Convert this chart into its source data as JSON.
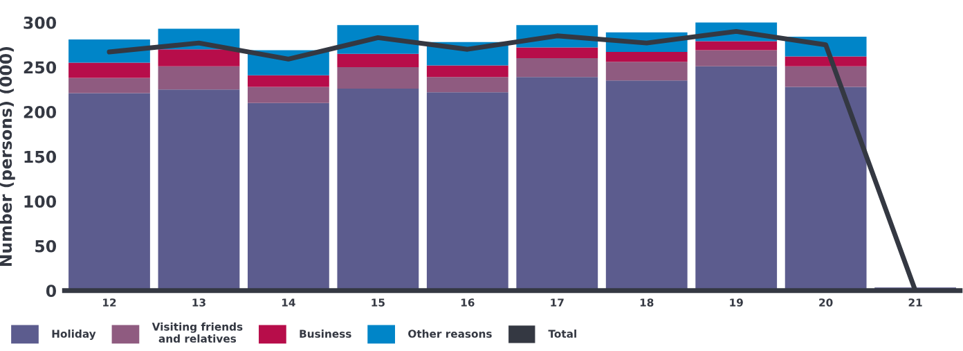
{
  "chart_data": {
    "type": "bar",
    "stacked": true,
    "ylabel": "Number (persons) (000)",
    "categories": [
      "12",
      "13",
      "14",
      "15",
      "16",
      "17",
      "18",
      "19",
      "20",
      "21"
    ],
    "series": [
      {
        "name": "Holiday",
        "color": "#5c5c8e",
        "values": [
          221,
          225,
          210,
          226,
          222,
          239,
          235,
          251,
          228,
          3.5
        ]
      },
      {
        "name": "Visiting friends\nand relatives",
        "color": "#8f5b80",
        "values": [
          17,
          26,
          18,
          24,
          17,
          21,
          21,
          18,
          23,
          0
        ]
      },
      {
        "name": "Business",
        "color": "#b70d4a",
        "values": [
          17,
          19,
          13,
          15,
          13,
          12,
          11,
          10,
          11,
          0
        ]
      },
      {
        "name": "Other reasons",
        "color": "#0085c8",
        "values": [
          26,
          23,
          28,
          32,
          26,
          25,
          22,
          21,
          22,
          0
        ]
      },
      {
        "name": "Total",
        "type": "line",
        "color": "#343842",
        "values": [
          267,
          277,
          259,
          283,
          270,
          285,
          277,
          290,
          275,
          0
        ]
      }
    ],
    "ylim": [
      0,
      300
    ],
    "yticks": [
      0,
      50,
      100,
      150,
      200,
      250,
      300
    ],
    "grid": false,
    "legend": "bottom left",
    "marker": "none",
    "line_style": "solid"
  }
}
